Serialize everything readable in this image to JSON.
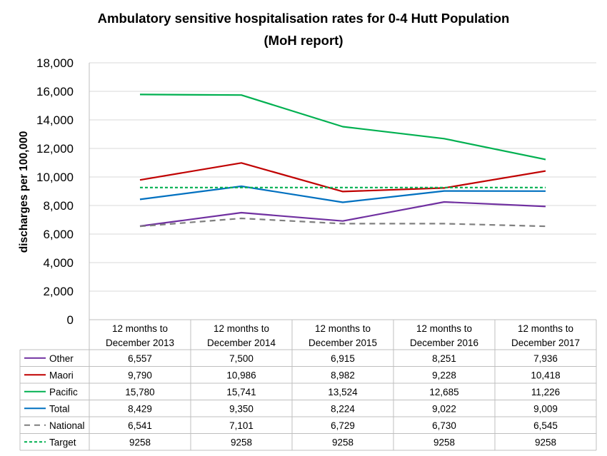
{
  "chart_data": {
    "type": "line",
    "title_line1": "Ambulatory sensitive hospitalisation rates for 0-4 Hutt Population",
    "title_line2": "(MoH report)",
    "ylabel": "discharges per 100,000",
    "ylim": [
      0,
      18000
    ],
    "ytick_labels": [
      "0",
      "2,000",
      "4,000",
      "6,000",
      "8,000",
      "10,000",
      "12,000",
      "14,000",
      "16,000",
      "18,000"
    ],
    "grid": "horizontal",
    "legend": "data table below chart",
    "categories": [
      [
        "12 months to",
        "December 2013"
      ],
      [
        "12 months to",
        "December 2014"
      ],
      [
        "12 months to",
        "December 2015"
      ],
      [
        "12 months to",
        "December 2016"
      ],
      [
        "12 months to",
        "December 2017"
      ]
    ],
    "series": [
      {
        "name": "Other",
        "color": "#7030a0",
        "dash": "solid",
        "values": [
          6557,
          7500,
          6915,
          8251,
          7936
        ],
        "labels": [
          "6,557",
          "7,500",
          "6,915",
          "8,251",
          "7,936"
        ]
      },
      {
        "name": "Maori",
        "color": "#c00000",
        "dash": "solid",
        "values": [
          9790,
          10986,
          8982,
          9228,
          10418
        ],
        "labels": [
          "9,790",
          "10,986",
          "8,982",
          "9,228",
          "10,418"
        ]
      },
      {
        "name": "Pacific",
        "color": "#00b050",
        "dash": "solid",
        "values": [
          15780,
          15741,
          13524,
          12685,
          11226
        ],
        "labels": [
          "15,780",
          "15,741",
          "13,524",
          "12,685",
          "11,226"
        ]
      },
      {
        "name": "Total",
        "color": "#0070c0",
        "dash": "solid",
        "values": [
          8429,
          9350,
          8224,
          9022,
          9009
        ],
        "labels": [
          "8,429",
          "9,350",
          "8,224",
          "9,022",
          "9,009"
        ]
      },
      {
        "name": "National",
        "color": "#7f7f7f",
        "dash": "dashed",
        "values": [
          6541,
          7101,
          6729,
          6730,
          6545
        ],
        "labels": [
          "6,541",
          "7,101",
          "6,729",
          "6,730",
          "6,545"
        ]
      },
      {
        "name": "Target",
        "color": "#00b050",
        "dash": "dotted",
        "values": [
          9258,
          9258,
          9258,
          9258,
          9258
        ],
        "labels": [
          "9258",
          "9258",
          "9258",
          "9258",
          "9258"
        ]
      }
    ]
  }
}
